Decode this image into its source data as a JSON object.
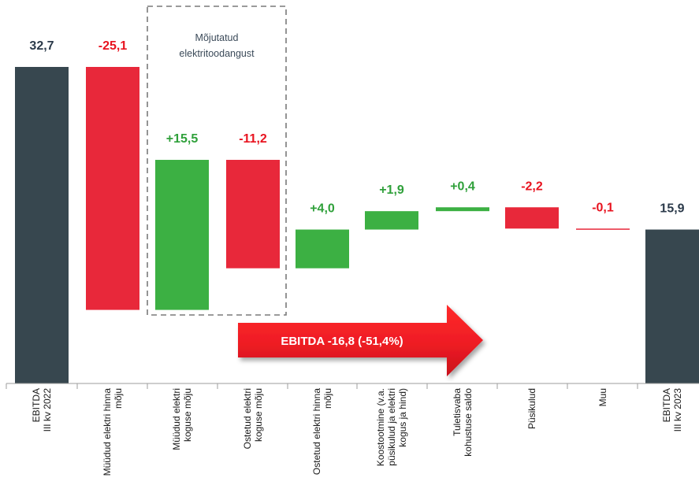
{
  "chart_data": {
    "type": "waterfall",
    "categories": [
      [
        "EBITDA",
        "III kv 2022"
      ],
      [
        "Müüdud elektri hinna",
        "mõju"
      ],
      [
        "Müüdud elektri",
        "koguse mõju"
      ],
      [
        "Ostetud elektri",
        "koguse mõju"
      ],
      [
        "Ostetud elektri hinna",
        "mõju"
      ],
      [
        "Koostootmine (v.a.",
        "püsikulud ja elektri",
        "kogus ja hind)"
      ],
      [
        "Tuletisvaba",
        "kohustuse saldo"
      ],
      [
        "Püsikulud"
      ],
      [
        "Muu"
      ],
      [
        "EBITDA",
        "III kv 2023"
      ]
    ],
    "values": [
      32.7,
      -25.1,
      15.5,
      -11.2,
      4.0,
      1.9,
      0.4,
      -2.2,
      -0.1,
      15.9
    ],
    "kinds": [
      "total",
      "delta",
      "delta",
      "delta",
      "delta",
      "delta",
      "delta",
      "delta",
      "delta",
      "total"
    ],
    "labels": [
      "32,7",
      "-25,1",
      "+15,5",
      "-11,2",
      "+4,0",
      "+1,9",
      "+0,4",
      "-2,2",
      "-0,1",
      "15,9"
    ],
    "ylim": [
      0,
      32.7
    ],
    "colors": {
      "total": "#37474f",
      "positive": "#3cb043",
      "negative": "#e8283a",
      "total_label": "#2b3a4a",
      "positive_label": "#2fa03a",
      "negative_label": "#e8131f",
      "arrow": "#ee1c24"
    },
    "highlight_box": {
      "label_lines": [
        "Mõjutatud",
        "elektritoodangust"
      ],
      "covers": [
        2,
        3
      ]
    },
    "arrow_text": "EBITDA -16,8 (-51,4%)"
  }
}
